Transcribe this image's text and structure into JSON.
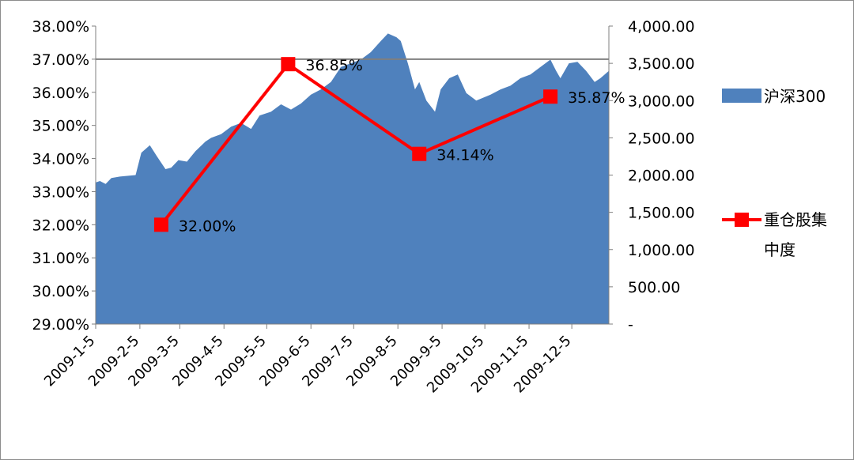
{
  "chart_data": {
    "type": "area+line",
    "x_tick_labels": [
      "2009-1-5",
      "2009-2-5",
      "2009-3-5",
      "2009-4-5",
      "2009-5-5",
      "2009-6-5",
      "2009-7-5",
      "2009-8-5",
      "2009-9-5",
      "2009-10-5",
      "2009-11-5",
      "2009-12-5"
    ],
    "y_left": {
      "ylim": [
        29.0,
        38.0
      ],
      "tick_labels": [
        "38.00%",
        "37.00%",
        "36.00%",
        "35.00%",
        "34.00%",
        "33.00%",
        "32.00%",
        "31.00%",
        "30.00%",
        "29.00%"
      ]
    },
    "y_right": {
      "ylim": [
        0,
        4000
      ],
      "tick_labels": [
        "4,000.00",
        "3,500.00",
        "3,000.00",
        "2,500.00",
        "2,000.00",
        "1,500.00",
        "1,000.00",
        "500.00",
        "-"
      ]
    },
    "series": [
      {
        "name": "沪深300",
        "kind": "area",
        "axis": "right",
        "color": "#4f81bd",
        "x": [
          "2009-1-5",
          "2009-1-8",
          "2009-1-12",
          "2009-1-16",
          "2009-1-22",
          "2009-2-2",
          "2009-2-6",
          "2009-2-12",
          "2009-2-17",
          "2009-2-23",
          "2009-2-27",
          "2009-3-4",
          "2009-3-10",
          "2009-3-16",
          "2009-3-23",
          "2009-3-27",
          "2009-4-3",
          "2009-4-10",
          "2009-4-17",
          "2009-4-24",
          "2009-4-30",
          "2009-5-8",
          "2009-5-15",
          "2009-5-22",
          "2009-5-29",
          "2009-6-5",
          "2009-6-12",
          "2009-6-19",
          "2009-6-26",
          "2009-7-3",
          "2009-7-10",
          "2009-7-17",
          "2009-7-24",
          "2009-7-29",
          "2009-8-4",
          "2009-8-7",
          "2009-8-12",
          "2009-8-17",
          "2009-8-20",
          "2009-8-25",
          "2009-8-31",
          "2009-9-4",
          "2009-9-10",
          "2009-9-16",
          "2009-9-22",
          "2009-9-29",
          "2009-10-9",
          "2009-10-16",
          "2009-10-23",
          "2009-10-30",
          "2009-11-6",
          "2009-11-13",
          "2009-11-20",
          "2009-11-24",
          "2009-11-27",
          "2009-12-3",
          "2009-12-9",
          "2009-12-15",
          "2009-12-21",
          "2009-12-25",
          "2009-12-31"
        ],
        "values": [
          1900,
          1920,
          1880,
          1960,
          1980,
          2000,
          2300,
          2400,
          2250,
          2080,
          2100,
          2200,
          2180,
          2320,
          2450,
          2500,
          2550,
          2650,
          2700,
          2620,
          2800,
          2850,
          2950,
          2880,
          2960,
          3080,
          3150,
          3250,
          3450,
          3500,
          3550,
          3650,
          3800,
          3900,
          3850,
          3800,
          3500,
          3150,
          3250,
          3000,
          2850,
          3150,
          3300,
          3350,
          3100,
          3000,
          3080,
          3150,
          3200,
          3300,
          3350,
          3450,
          3550,
          3400,
          3300,
          3500,
          3520,
          3400,
          3250,
          3300,
          3400
        ]
      },
      {
        "name": "重仓股集中度",
        "name_lines": [
          "重仓股集",
          "中度"
        ],
        "kind": "line",
        "axis": "left",
        "color": "#ff0000",
        "x": [
          "2009-2-20",
          "2009-5-20",
          "2009-8-20",
          "2009-11-20"
        ],
        "values": [
          32.0,
          36.85,
          34.14,
          35.87
        ],
        "labels": [
          "32.00%",
          "36.85%",
          "34.14%",
          "35.87%"
        ]
      }
    ],
    "gridline_at_left": 37.0,
    "legend": "right"
  }
}
